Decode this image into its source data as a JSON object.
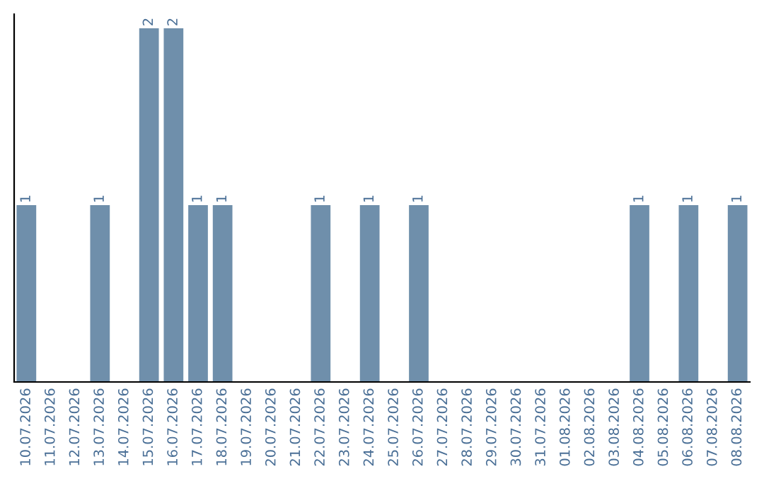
{
  "chart_data": {
    "type": "bar",
    "categories": [
      "10.07.2026",
      "11.07.2026",
      "12.07.2026",
      "13.07.2026",
      "14.07.2026",
      "15.07.2026",
      "16.07.2026",
      "17.07.2026",
      "18.07.2026",
      "19.07.2026",
      "20.07.2026",
      "21.07.2026",
      "22.07.2026",
      "23.07.2026",
      "24.07.2026",
      "25.07.2026",
      "26.07.2026",
      "27.07.2026",
      "28.07.2026",
      "29.07.2026",
      "30.07.2026",
      "31.07.2026",
      "01.08.2026",
      "02.08.2026",
      "03.08.2026",
      "04.08.2026",
      "05.08.2026",
      "06.08.2026",
      "07.08.2026",
      "08.08.2026"
    ],
    "values": [
      1,
      0,
      0,
      1,
      0,
      2,
      2,
      1,
      1,
      0,
      0,
      0,
      1,
      0,
      1,
      0,
      1,
      0,
      0,
      0,
      0,
      0,
      0,
      0,
      0,
      1,
      0,
      1,
      0,
      1
    ],
    "value_labels": [
      "1",
      null,
      null,
      "1",
      null,
      "2",
      "2",
      "1",
      "1",
      null,
      null,
      null,
      "1",
      null,
      "1",
      null,
      "1",
      null,
      null,
      null,
      null,
      null,
      null,
      null,
      null,
      "1",
      null,
      "1",
      null,
      "1"
    ],
    "color": "#6f8fab",
    "ylim": [
      0,
      2.08
    ],
    "tick_labels": "x",
    "grid": false,
    "legend": false
  }
}
